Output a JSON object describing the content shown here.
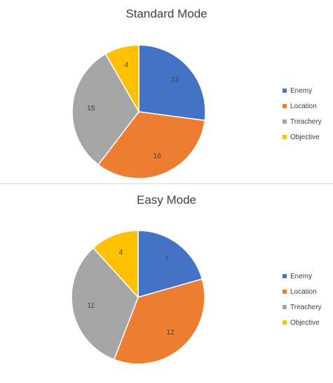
{
  "colors": {
    "Enemy": "#4472c4",
    "Location": "#ed7d31",
    "Treachery": "#a5a5a5",
    "Objective": "#ffc000"
  },
  "chart_data": [
    {
      "type": "pie",
      "title": "Standard Mode",
      "categories": [
        "Enemy",
        "Location",
        "Treachery",
        "Objective"
      ],
      "values": [
        13,
        16,
        15,
        4
      ],
      "data_labels": [
        "13",
        "16",
        "15",
        "4"
      ],
      "legend": "right",
      "start_angle": "12 o'clock",
      "direction": "clockwise"
    },
    {
      "type": "pie",
      "title": "Easy Mode",
      "categories": [
        "Enemy",
        "Location",
        "Treachery",
        "Objective"
      ],
      "values": [
        7,
        12,
        11,
        4
      ],
      "data_labels": [
        "7",
        "12",
        "11",
        "4"
      ],
      "legend": "right",
      "start_angle": "12 o'clock",
      "direction": "clockwise"
    }
  ]
}
